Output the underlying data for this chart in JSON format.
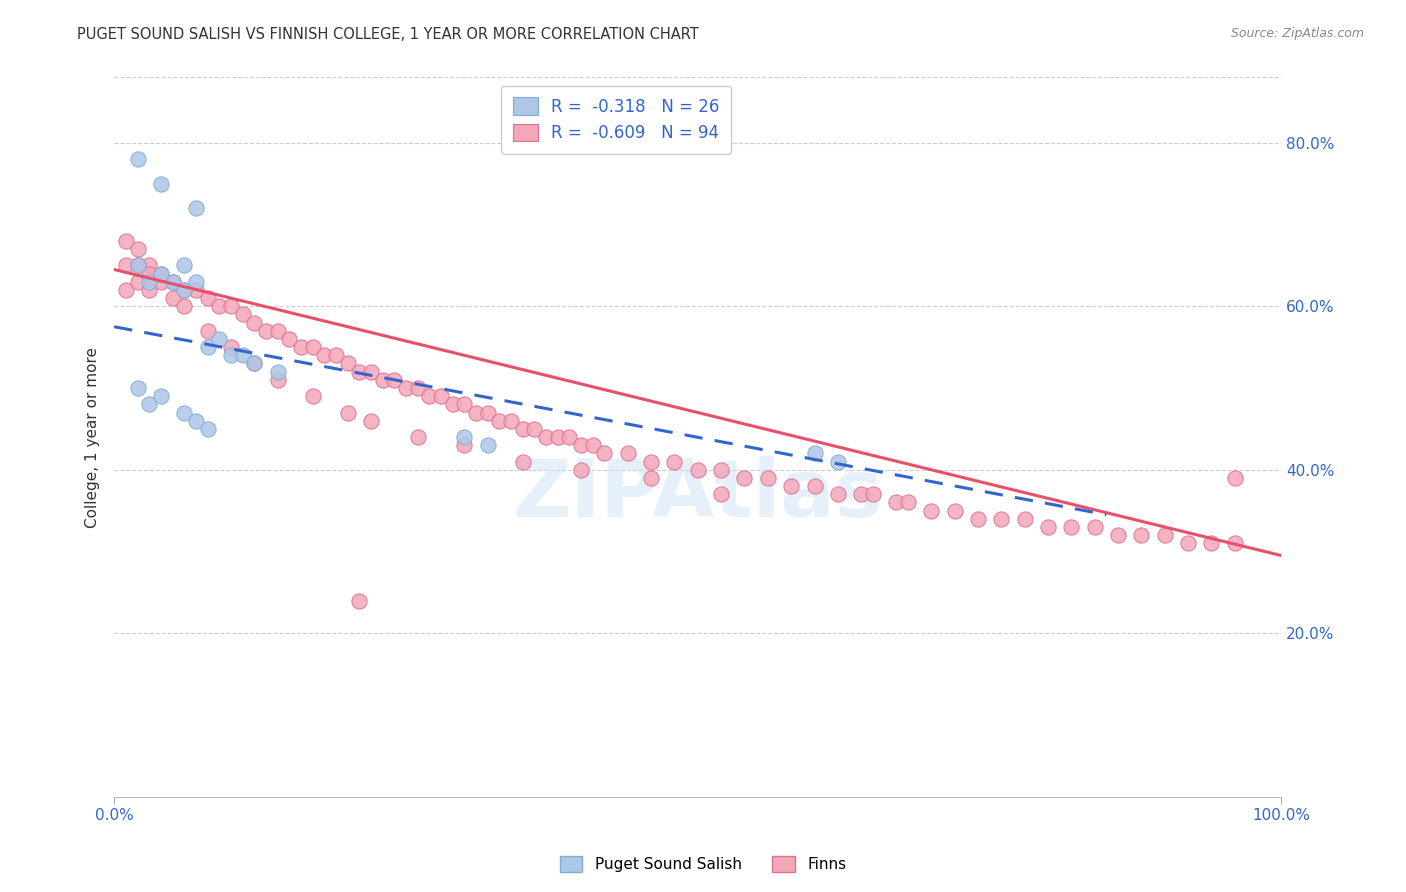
{
  "title": "PUGET SOUND SALISH VS FINNISH COLLEGE, 1 YEAR OR MORE CORRELATION CHART",
  "source": "Source: ZipAtlas.com",
  "ylabel": "College, 1 year or more",
  "background_color": "#ffffff",
  "grid_color": "#ccccff",
  "legend": {
    "salish_color": "#aec6e8",
    "salish_edgecolor": "#7bafd4",
    "finn_color": "#f4a7b9",
    "finn_edgecolor": "#e07090",
    "salish_R": -0.318,
    "salish_N": 26,
    "finn_R": -0.609,
    "finn_N": 94,
    "text_color": "#3366cc"
  },
  "salish_scatter": {
    "color": "#aec6e8",
    "edgecolor": "#7bafd4",
    "points_x": [
      0.02,
      0.04,
      0.07,
      0.02,
      0.03,
      0.04,
      0.05,
      0.06,
      0.06,
      0.07,
      0.08,
      0.09,
      0.1,
      0.11,
      0.12,
      0.14,
      0.02,
      0.03,
      0.04,
      0.06,
      0.07,
      0.08,
      0.3,
      0.32,
      0.6,
      0.62
    ],
    "points_y": [
      0.78,
      0.75,
      0.72,
      0.65,
      0.63,
      0.64,
      0.63,
      0.65,
      0.62,
      0.63,
      0.55,
      0.56,
      0.54,
      0.54,
      0.53,
      0.52,
      0.5,
      0.48,
      0.49,
      0.47,
      0.46,
      0.45,
      0.44,
      0.43,
      0.42,
      0.41
    ]
  },
  "finn_scatter": {
    "color": "#f4a7b9",
    "edgecolor": "#e07090",
    "points_x": [
      0.01,
      0.02,
      0.03,
      0.04,
      0.05,
      0.06,
      0.07,
      0.08,
      0.09,
      0.1,
      0.11,
      0.12,
      0.13,
      0.14,
      0.15,
      0.16,
      0.17,
      0.18,
      0.19,
      0.2,
      0.21,
      0.22,
      0.23,
      0.24,
      0.25,
      0.26,
      0.27,
      0.28,
      0.29,
      0.3,
      0.31,
      0.32,
      0.33,
      0.34,
      0.35,
      0.36,
      0.37,
      0.38,
      0.39,
      0.4,
      0.41,
      0.42,
      0.44,
      0.46,
      0.48,
      0.5,
      0.52,
      0.54,
      0.56,
      0.58,
      0.6,
      0.62,
      0.64,
      0.65,
      0.67,
      0.68,
      0.7,
      0.72,
      0.74,
      0.76,
      0.78,
      0.8,
      0.82,
      0.84,
      0.86,
      0.88,
      0.9,
      0.92,
      0.94,
      0.96,
      0.01,
      0.01,
      0.02,
      0.02,
      0.03,
      0.03,
      0.04,
      0.05,
      0.06,
      0.08,
      0.1,
      0.12,
      0.14,
      0.17,
      0.2,
      0.22,
      0.26,
      0.3,
      0.35,
      0.4,
      0.46,
      0.52,
      0.96,
      0.21
    ],
    "points_y": [
      0.68,
      0.67,
      0.65,
      0.64,
      0.63,
      0.62,
      0.62,
      0.61,
      0.6,
      0.6,
      0.59,
      0.58,
      0.57,
      0.57,
      0.56,
      0.55,
      0.55,
      0.54,
      0.54,
      0.53,
      0.52,
      0.52,
      0.51,
      0.51,
      0.5,
      0.5,
      0.49,
      0.49,
      0.48,
      0.48,
      0.47,
      0.47,
      0.46,
      0.46,
      0.45,
      0.45,
      0.44,
      0.44,
      0.44,
      0.43,
      0.43,
      0.42,
      0.42,
      0.41,
      0.41,
      0.4,
      0.4,
      0.39,
      0.39,
      0.38,
      0.38,
      0.37,
      0.37,
      0.37,
      0.36,
      0.36,
      0.35,
      0.35,
      0.34,
      0.34,
      0.34,
      0.33,
      0.33,
      0.33,
      0.32,
      0.32,
      0.32,
      0.31,
      0.31,
      0.31,
      0.65,
      0.62,
      0.65,
      0.63,
      0.64,
      0.62,
      0.63,
      0.61,
      0.6,
      0.57,
      0.55,
      0.53,
      0.51,
      0.49,
      0.47,
      0.46,
      0.44,
      0.43,
      0.41,
      0.4,
      0.39,
      0.37,
      0.39,
      0.24
    ]
  },
  "salish_trend": {
    "x_start": 0.0,
    "y_start": 0.575,
    "x_end": 0.85,
    "y_end": 0.345,
    "color": "#3366cc",
    "style": "--",
    "linewidth": 2.2
  },
  "finn_trend": {
    "x_start": 0.0,
    "y_start": 0.645,
    "x_end": 1.0,
    "y_end": 0.295,
    "color": "#e8506a",
    "style": "-",
    "linewidth": 2.2
  },
  "xlim": [
    0.0,
    1.0
  ],
  "ylim": [
    0.0,
    0.88
  ],
  "watermark": "ZIPAtlas",
  "watermark_color": "#c8dff5",
  "watermark_alpha": 0.45,
  "watermark_fontsize": 58
}
